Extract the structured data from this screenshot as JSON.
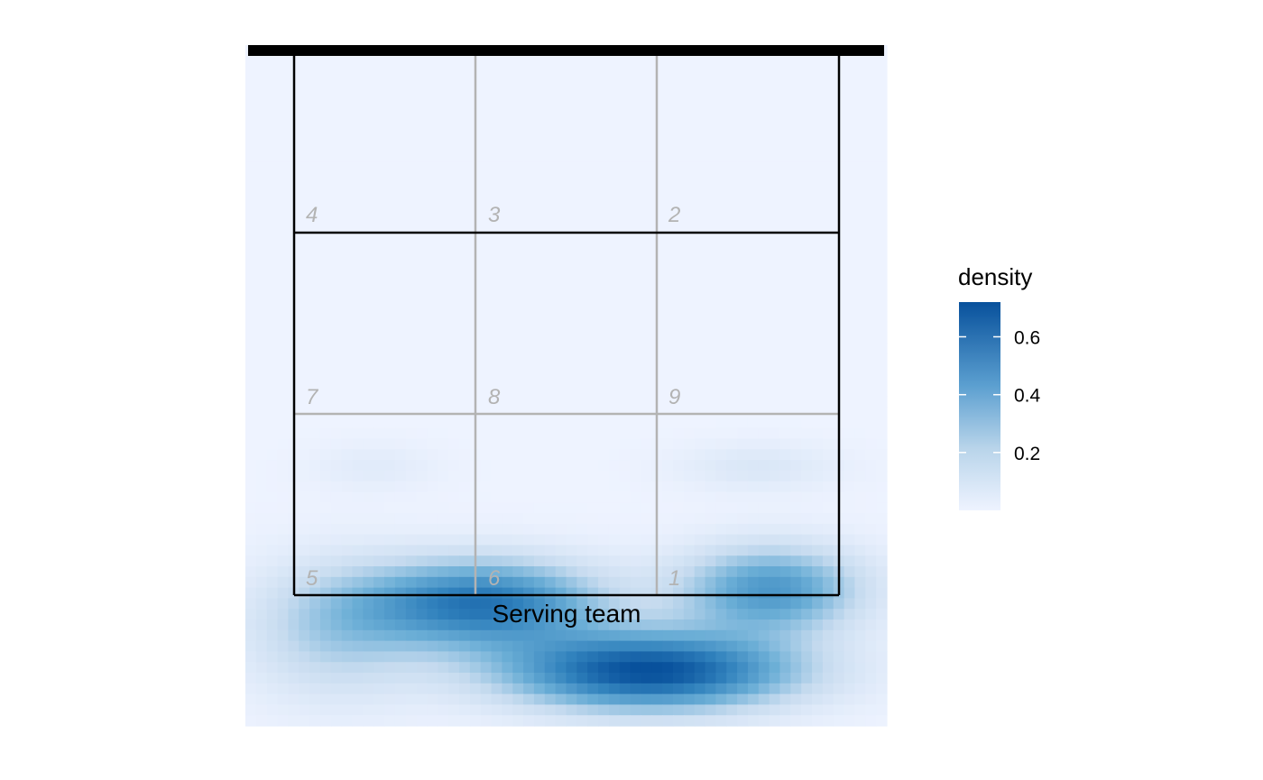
{
  "chart_data": {
    "type": "heatmap",
    "title": "",
    "xlabel": "",
    "ylabel": "",
    "caption": "Serving team",
    "grid": false,
    "legend": {
      "title": "density",
      "placement": "right",
      "ticks": [
        "0.2",
        "0.4",
        "0.6"
      ],
      "tick_values": [
        0.2,
        0.4,
        0.6
      ],
      "range": [
        0,
        0.72
      ],
      "low_color": "#eef3ff",
      "high_color": "#08519c"
    },
    "zone_labels": [
      "4",
      "3",
      "2",
      "7",
      "8",
      "9",
      "5",
      "6",
      "1"
    ],
    "density_peaks": [
      {
        "x": 0.37,
        "y": 0.18,
        "value": 0.58
      },
      {
        "x": 0.63,
        "y": 0.08,
        "value": 0.72
      },
      {
        "x": 0.82,
        "y": 0.2,
        "value": 0.45
      },
      {
        "x": 0.14,
        "y": 0.14,
        "value": 0.22
      },
      {
        "x": 0.2,
        "y": 0.38,
        "value": 0.06
      },
      {
        "x": 0.8,
        "y": 0.38,
        "value": 0.09
      }
    ]
  },
  "colors": {
    "court_line": "#000000",
    "grid_line": "#b3b3b3",
    "net": "#000000"
  }
}
